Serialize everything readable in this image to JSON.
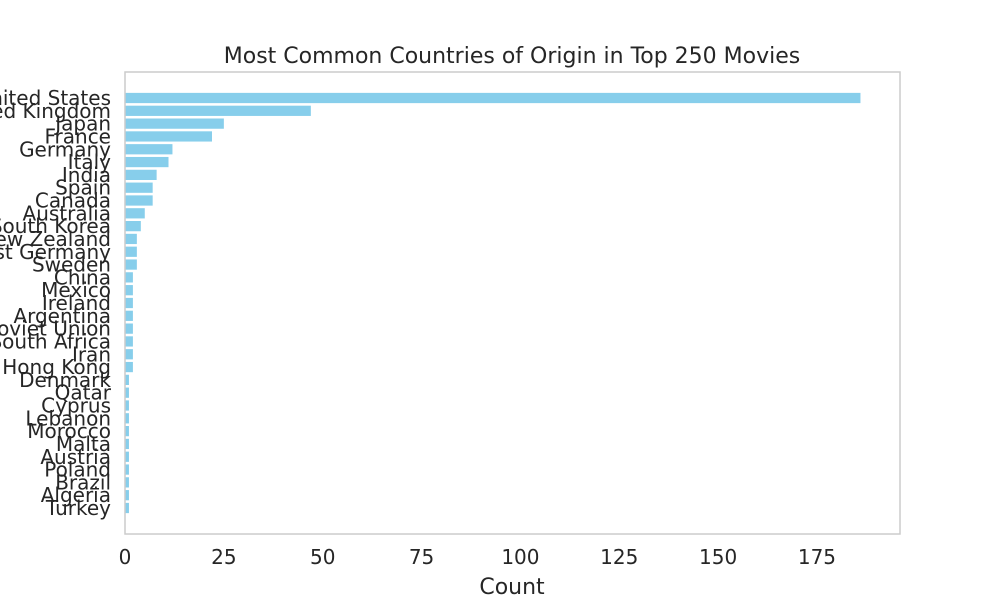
{
  "chart_data": {
    "type": "bar",
    "orientation": "horizontal",
    "title": "Most Common Countries of Origin in Top 250 Movies",
    "xlabel": "Count",
    "ylabel": "",
    "xlim": [
      0,
      196
    ],
    "x_ticks": [
      0,
      25,
      50,
      75,
      100,
      125,
      150,
      175
    ],
    "grid": false,
    "legend": "none",
    "bar_color": "#87CEEB",
    "frame_color": "#CCCCCC",
    "categories": [
      "United States",
      "United Kingdom",
      "Japan",
      "France",
      "Germany",
      "Italy",
      "India",
      "Spain",
      "Canada",
      "Australia",
      "South Korea",
      "New Zealand",
      "West Germany",
      "Sweden",
      "China",
      "Mexico",
      "Ireland",
      "Argentina",
      "Soviet Union",
      "South Africa",
      "Iran",
      "Hong Kong",
      "Denmark",
      "Qatar",
      "Cyprus",
      "Lebanon",
      "Morocco",
      "Malta",
      "Austria",
      "Poland",
      "Brazil",
      "Algeria",
      "Turkey"
    ],
    "values": [
      186,
      47,
      25,
      22,
      12,
      11,
      8,
      7,
      7,
      5,
      4,
      3,
      3,
      3,
      2,
      2,
      2,
      2,
      2,
      2,
      2,
      2,
      1,
      1,
      1,
      1,
      1,
      1,
      1,
      1,
      1,
      1,
      1
    ]
  }
}
